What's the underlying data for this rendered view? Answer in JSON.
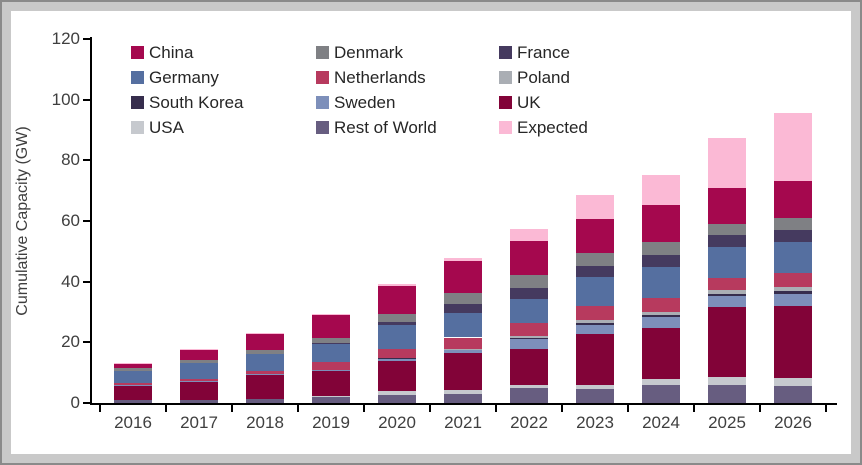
{
  "chart_data": {
    "type": "bar",
    "stacked": true,
    "ylabel": "Cumulative Capacity (GW)",
    "ylim": [
      0,
      120
    ],
    "yticks": [
      0,
      20,
      40,
      60,
      80,
      100,
      120
    ],
    "grid": false,
    "categories": [
      "2016",
      "2017",
      "2018",
      "2019",
      "2020",
      "2021",
      "2022",
      "2023",
      "2024",
      "2025",
      "2026"
    ],
    "legend_position": "top-left-inside",
    "legend_columns": 3,
    "legend_order": [
      "China",
      "Denmark",
      "France",
      "Germany",
      "Netherlands",
      "Poland",
      "South Korea",
      "Sweden",
      "UK",
      "USA",
      "Rest of World",
      "Expected"
    ],
    "stack_order_bottom_to_top": [
      "Rest of World",
      "USA",
      "UK",
      "Sweden",
      "South Korea",
      "Poland",
      "Netherlands",
      "Germany",
      "France",
      "Denmark",
      "China",
      "Expected"
    ],
    "series": [
      {
        "name": "China",
        "color": "#A5084E",
        "values": [
          1.5,
          3.4,
          5.3,
          7.5,
          9.4,
          10.4,
          11.2,
          11.5,
          12.3,
          12.0,
          12.0
        ]
      },
      {
        "name": "Denmark",
        "color": "#7F8084",
        "values": [
          1.1,
          1.1,
          1.4,
          1.8,
          2.7,
          3.9,
          4.4,
          4.1,
          4.2,
          3.4,
          4.1
        ]
      },
      {
        "name": "France",
        "color": "#453A5F",
        "values": [
          0,
          0,
          0,
          0.1,
          0.8,
          2.9,
          3.6,
          3.6,
          4.1,
          4.1,
          3.9
        ]
      },
      {
        "name": "Germany",
        "color": "#556FA0",
        "values": [
          3.9,
          5.3,
          5.5,
          6.1,
          8.0,
          8.0,
          7.7,
          9.7,
          10.2,
          10.3,
          10.4
        ]
      },
      {
        "name": "Netherlands",
        "color": "#B73A5E",
        "values": [
          0.7,
          0.7,
          1.1,
          2.6,
          3.0,
          3.7,
          4.4,
          4.6,
          4.4,
          4.0,
          4.4
        ]
      },
      {
        "name": "Poland",
        "color": "#AAAEB4",
        "values": [
          0,
          0,
          0,
          0,
          0,
          0.2,
          0.7,
          0.8,
          1.1,
          1.0,
          1.5
        ]
      },
      {
        "name": "South Korea",
        "color": "#362D4D",
        "values": [
          0,
          0,
          0,
          0,
          0.1,
          0.2,
          0.3,
          0.7,
          0.6,
          0.7,
          0.9
        ]
      },
      {
        "name": "Sweden",
        "color": "#7D8FBA",
        "values": [
          0.2,
          0.2,
          0.2,
          0.3,
          0.7,
          1.0,
          3.3,
          3.0,
          3.6,
          3.6,
          3.8
        ]
      },
      {
        "name": "UK",
        "color": "#820338",
        "values": [
          4.8,
          5.9,
          8.0,
          8.3,
          10.2,
          12.3,
          11.9,
          16.8,
          17.0,
          23.3,
          24.0
        ]
      },
      {
        "name": "USA",
        "color": "#C6C9CE",
        "values": [
          0,
          0,
          0,
          0.1,
          1.1,
          1.2,
          1.1,
          1.3,
          1.8,
          2.5,
          2.6
        ]
      },
      {
        "name": "Rest of World",
        "color": "#675D80",
        "values": [
          0.9,
          1.1,
          1.3,
          2.2,
          2.7,
          3.0,
          4.8,
          4.7,
          6.0,
          6.0,
          5.5
        ]
      },
      {
        "name": "Expected",
        "color": "#FBB9D5",
        "values": [
          0.15,
          0.2,
          0.25,
          0.3,
          0.6,
          1.1,
          3.9,
          7.7,
          9.9,
          16.6,
          22.5
        ]
      }
    ],
    "colors": {
      "background": "#FFFFFF",
      "frame_inner": "#C9C9C9",
      "frame_outer": "#8A8A8A",
      "axis": "#000000",
      "text": "#3F3F3F"
    }
  }
}
